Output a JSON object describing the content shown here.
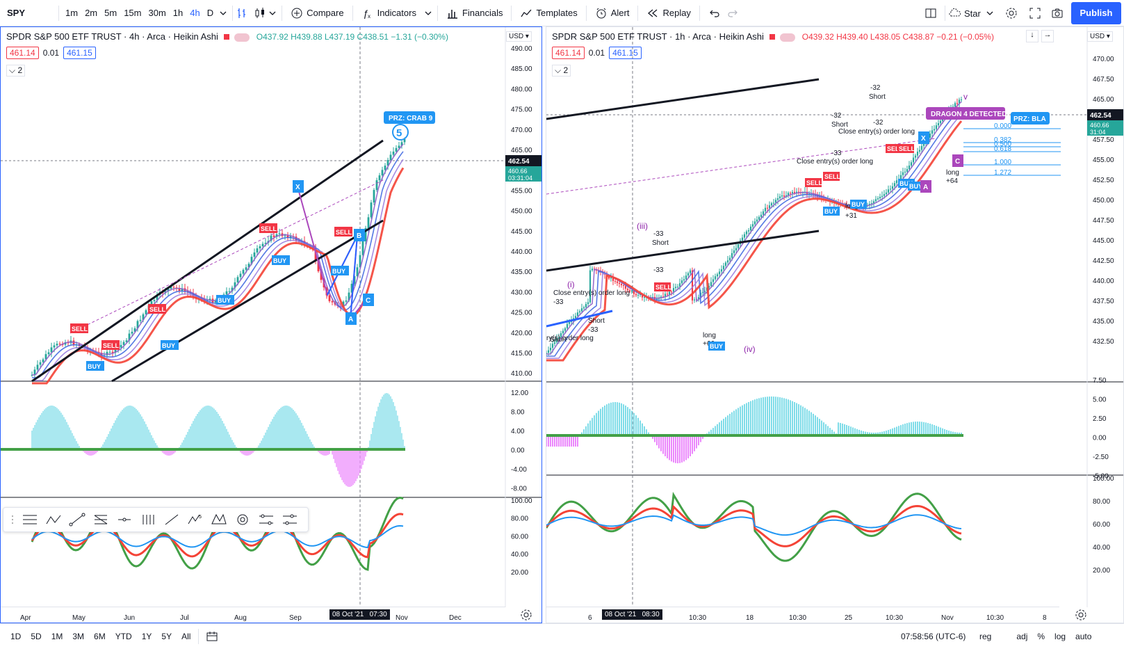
{
  "toolbar": {
    "symbol": "SPY",
    "intervals": [
      "1m",
      "2m",
      "5m",
      "15m",
      "30m",
      "1h",
      "4h",
      "D"
    ],
    "active_interval": "4h",
    "compare": "Compare",
    "indicators": "Indicators",
    "financials": "Financials",
    "templates": "Templates",
    "alert": "Alert",
    "replay": "Replay",
    "layout_name": "Star",
    "publish": "Publish"
  },
  "left_chart": {
    "title": "SPDR S&P 500 ETF TRUST · 4h · Arca · Heikin Ashi",
    "ohlc": "O437.92 H439.88 L437.19 C438.51 −1.31 (−0.30%)",
    "bid": "461.14",
    "spread": "0.01",
    "ask": "461.15",
    "collapse_count": "2",
    "currency": "USD",
    "price_ticks": [
      "490.00",
      "485.00",
      "480.00",
      "475.00",
      "470.00",
      "465.00",
      "460.66",
      "455.00",
      "450.00",
      "445.00",
      "440.00",
      "435.00",
      "430.00",
      "425.00",
      "420.00",
      "415.00",
      "410.00"
    ],
    "last_price": "462.54",
    "last_price2": "460.66",
    "countdown": "03:31:04",
    "osc1_ticks": [
      "12.00",
      "8.00",
      "4.00",
      "0.00",
      "-4.00",
      "-8.00"
    ],
    "osc2_ticks": [
      "100.00",
      "80.00",
      "60.00",
      "40.00",
      "20.00"
    ],
    "time_ticks": [
      "Apr",
      "May",
      "Jun",
      "Jul",
      "Aug",
      "Sep",
      "Nov",
      "Dec"
    ],
    "crosshair_date": "08 Oct '21",
    "crosshair_time": "07:30",
    "prz_label": "PRZ: CRAB 9",
    "wave_label": "5"
  },
  "right_chart": {
    "title": "SPDR S&P 500 ETF TRUST · 1h · Arca · Heikin Ashi",
    "ohlc": "O439.32 H439.40 L438.05 C438.87 −0.21 (−0.05%)",
    "bid": "461.14",
    "spread": "0.01",
    "ask": "461.15",
    "collapse_count": "2",
    "currency": "USD",
    "price_ticks": [
      "470.00",
      "467.50",
      "465.00",
      "460.66",
      "457.50",
      "455.00",
      "452.50",
      "450.00",
      "447.50",
      "445.00",
      "442.50",
      "440.00",
      "437.50",
      "435.00",
      "432.50"
    ],
    "last_price": "462.54",
    "last_price2": "460.66",
    "countdown": "31:04",
    "osc1_ticks": [
      "7.50",
      "5.00",
      "2.50",
      "0.00",
      "-2.50",
      "-5.00"
    ],
    "osc2_ticks": [
      "100.00",
      "80.00",
      "60.00",
      "40.00",
      "20.00"
    ],
    "time_ticks": [
      "6",
      "10:30",
      "18",
      "10:30",
      "25",
      "10:30",
      "Nov",
      "10:30",
      "8"
    ],
    "crosshair_date": "08 Oct '21",
    "crosshair_time": "08:30",
    "dragon_label": "DRAGON 4 DETECTED",
    "prz_label": "PRZ: BLA",
    "fib_levels": [
      "0.000",
      "0.382",
      "0.500",
      "0.618",
      "1.000",
      "1.272"
    ],
    "annotations": [
      "-32",
      "Short",
      "-32",
      "Short",
      "-32",
      "Close entry(s) order long",
      "-33",
      "Close entry(s) order long",
      "-33",
      "Short",
      "-33",
      "Close entry(s) order long",
      "-33",
      "Short",
      "-33",
      "Short",
      "long",
      "+64",
      "long",
      "+31",
      "long",
      "+66",
      "ry(s) order long"
    ],
    "wave_labels": [
      "(iii)",
      "(i)",
      "(iv)",
      "v"
    ]
  },
  "signals": [
    "SELL",
    "BUY",
    "A",
    "B",
    "C",
    "X"
  ],
  "bottom": {
    "ranges": [
      "1D",
      "5D",
      "1M",
      "3M",
      "6M",
      "YTD",
      "1Y",
      "5Y",
      "All"
    ],
    "clock": "07:58:56 (UTC-6)",
    "scale": [
      "reg",
      "adj",
      "%",
      "log",
      "auto"
    ]
  },
  "colors": {
    "accent": "#2962ff",
    "up": "#26a69a",
    "down": "#f23645",
    "osc_up": "#4dd0e1",
    "osc_down": "#e040fb",
    "rsi_green": "#43a047",
    "rsi_red": "#f44336",
    "rsi_blue": "#2196f3"
  }
}
